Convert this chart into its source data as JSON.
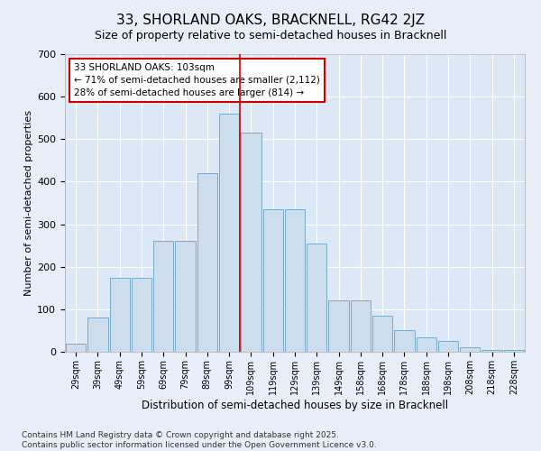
{
  "title": "33, SHORLAND OAKS, BRACKNELL, RG42 2JZ",
  "subtitle": "Size of property relative to semi-detached houses in Bracknell",
  "xlabel": "Distribution of semi-detached houses by size in Bracknell",
  "ylabel": "Number of semi-detached properties",
  "footer_line1": "Contains HM Land Registry data © Crown copyright and database right 2025.",
  "footer_line2": "Contains public sector information licensed under the Open Government Licence v3.0.",
  "bar_labels": [
    "29sqm",
    "39sqm",
    "49sqm",
    "59sqm",
    "69sqm",
    "79sqm",
    "89sqm",
    "99sqm",
    "109sqm",
    "119sqm",
    "129sqm",
    "139sqm",
    "149sqm",
    "158sqm",
    "168sqm",
    "178sqm",
    "188sqm",
    "198sqm",
    "208sqm",
    "218sqm",
    "228sqm"
  ],
  "bar_values": [
    20,
    80,
    175,
    175,
    260,
    260,
    420,
    560,
    515,
    335,
    335,
    255,
    120,
    120,
    85,
    50,
    35,
    25,
    10,
    5,
    5
  ],
  "bar_color": "#ccdded",
  "bar_edge_color": "#7aaac8",
  "vline_x_idx": 8,
  "vline_color": "#cc0000",
  "annotation_text": "33 SHORLAND OAKS: 103sqm\n← 71% of semi-detached houses are smaller (2,112)\n28% of semi-detached houses are larger (814) →",
  "annotation_box_color": "#cc0000",
  "ylim": [
    0,
    700
  ],
  "yticks": [
    0,
    100,
    200,
    300,
    400,
    500,
    600,
    700
  ],
  "bg_color": "#dce8f5",
  "fig_bg_color": "#e8eef8",
  "title_fontsize": 11,
  "subtitle_fontsize": 9,
  "ylabel_fontsize": 8,
  "xlabel_fontsize": 8.5,
  "annotation_fontsize": 7.5,
  "footer_fontsize": 6.5,
  "tick_fontsize": 7
}
